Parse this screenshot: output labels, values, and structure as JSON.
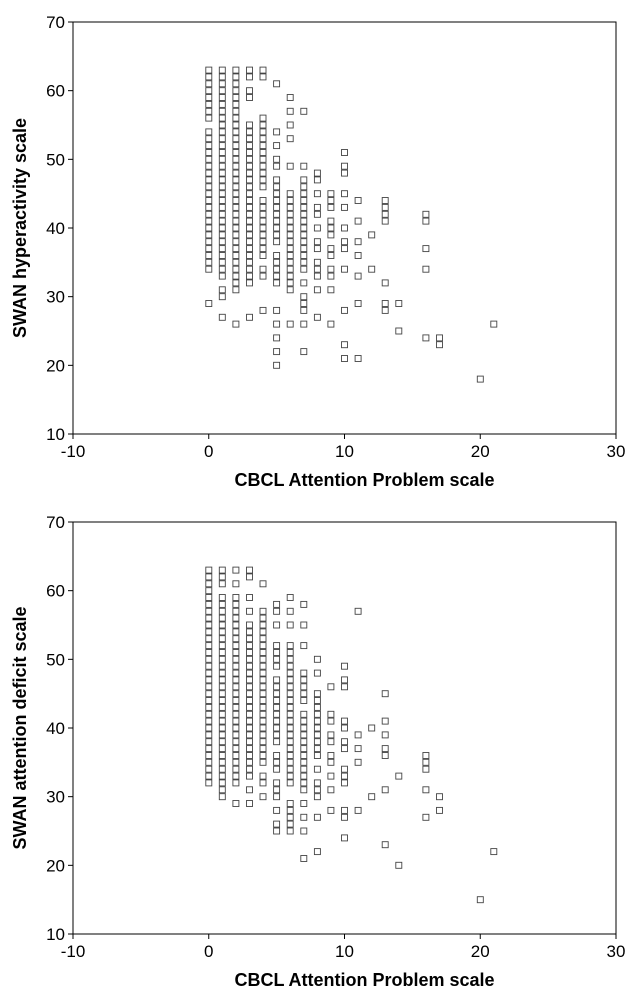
{
  "chart_data": [
    {
      "type": "scatter",
      "xlabel": "CBCL Attention Problem scale",
      "ylabel": "SWAN hyperactivity scale",
      "xlim": [
        -10,
        30
      ],
      "ylim": [
        10,
        70
      ],
      "xticks": [
        -10,
        0,
        10,
        20,
        30
      ],
      "yticks": [
        10,
        20,
        30,
        40,
        50,
        60,
        70
      ],
      "grid": false,
      "marker": "open-square",
      "columns": [
        {
          "x": 0,
          "y": [
            29,
            34,
            35,
            36,
            37,
            38,
            39,
            40,
            41,
            42,
            43,
            44,
            45,
            46,
            47,
            48,
            49,
            50,
            51,
            52,
            53,
            54,
            56,
            57,
            58,
            59,
            60,
            61,
            62,
            63
          ]
        },
        {
          "x": 1,
          "y": [
            27,
            30,
            31,
            33,
            34,
            35,
            36,
            37,
            38,
            39,
            40,
            41,
            42,
            43,
            44,
            45,
            46,
            47,
            48,
            49,
            50,
            51,
            52,
            53,
            54,
            55,
            56,
            57,
            58,
            59,
            60,
            61,
            62,
            63
          ]
        },
        {
          "x": 2,
          "y": [
            26,
            31,
            32,
            33,
            34,
            35,
            36,
            37,
            38,
            39,
            40,
            41,
            42,
            43,
            44,
            45,
            46,
            47,
            48,
            49,
            50,
            51,
            52,
            53,
            54,
            55,
            56,
            57,
            58,
            59,
            60,
            61,
            62,
            63
          ]
        },
        {
          "x": 3,
          "y": [
            27,
            32,
            33,
            34,
            35,
            36,
            37,
            38,
            39,
            40,
            41,
            42,
            43,
            44,
            45,
            46,
            47,
            48,
            49,
            50,
            51,
            52,
            53,
            54,
            55,
            59,
            60,
            62,
            63
          ]
        },
        {
          "x": 4,
          "y": [
            28,
            33,
            34,
            36,
            37,
            38,
            39,
            40,
            41,
            42,
            43,
            44,
            46,
            47,
            48,
            49,
            50,
            51,
            52,
            53,
            54,
            55,
            56,
            62,
            63
          ]
        },
        {
          "x": 5,
          "y": [
            20,
            22,
            24,
            26,
            28,
            32,
            33,
            34,
            35,
            36,
            38,
            39,
            40,
            41,
            42,
            43,
            44,
            45,
            46,
            47,
            49,
            50,
            52,
            54,
            61
          ]
        },
        {
          "x": 6,
          "y": [
            26,
            31,
            32,
            33,
            34,
            35,
            36,
            37,
            38,
            39,
            40,
            41,
            42,
            43,
            44,
            45,
            49,
            53,
            55,
            57,
            59
          ]
        },
        {
          "x": 7,
          "y": [
            22,
            26,
            28,
            29,
            30,
            32,
            34,
            35,
            36,
            37,
            38,
            39,
            40,
            41,
            42,
            43,
            44,
            45,
            46,
            47,
            49,
            57
          ]
        },
        {
          "x": 8,
          "y": [
            27,
            31,
            33,
            34,
            35,
            37,
            38,
            40,
            42,
            43,
            45,
            47,
            48
          ]
        },
        {
          "x": 9,
          "y": [
            26,
            31,
            33,
            34,
            36,
            37,
            39,
            40,
            41,
            43,
            44,
            45
          ]
        },
        {
          "x": 10,
          "y": [
            21,
            23,
            28,
            34,
            37,
            38,
            40,
            43,
            45,
            48,
            49,
            51
          ]
        },
        {
          "x": 11,
          "y": [
            21,
            29,
            33,
            36,
            38,
            41,
            44
          ]
        },
        {
          "x": 12,
          "y": [
            34,
            39
          ]
        },
        {
          "x": 13,
          "y": [
            28,
            29,
            32,
            41,
            42,
            43,
            44
          ]
        },
        {
          "x": 14,
          "y": [
            25,
            29
          ]
        },
        {
          "x": 16,
          "y": [
            24,
            34,
            37,
            41,
            42
          ]
        },
        {
          "x": 17,
          "y": [
            23,
            24
          ]
        },
        {
          "x": 20,
          "y": [
            18
          ]
        },
        {
          "x": 21,
          "y": [
            26
          ]
        }
      ]
    },
    {
      "type": "scatter",
      "xlabel": "CBCL Attention Problem scale",
      "ylabel": "SWAN attention deficit scale",
      "xlim": [
        -10,
        30
      ],
      "ylim": [
        10,
        70
      ],
      "xticks": [
        -10,
        0,
        10,
        20,
        30
      ],
      "yticks": [
        10,
        20,
        30,
        40,
        50,
        60,
        70
      ],
      "grid": false,
      "marker": "open-square",
      "columns": [
        {
          "x": 0,
          "y": [
            32,
            33,
            34,
            35,
            36,
            37,
            38,
            39,
            40,
            41,
            42,
            43,
            44,
            45,
            46,
            47,
            48,
            49,
            50,
            51,
            52,
            53,
            54,
            55,
            56,
            57,
            58,
            59,
            60,
            61,
            62,
            63
          ]
        },
        {
          "x": 1,
          "y": [
            30,
            31,
            32,
            33,
            34,
            35,
            36,
            37,
            38,
            39,
            40,
            41,
            42,
            43,
            44,
            45,
            46,
            47,
            48,
            49,
            50,
            51,
            52,
            53,
            54,
            55,
            56,
            57,
            58,
            59,
            61,
            62,
            63
          ]
        },
        {
          "x": 2,
          "y": [
            29,
            32,
            33,
            34,
            35,
            36,
            37,
            38,
            39,
            40,
            41,
            42,
            43,
            44,
            45,
            46,
            47,
            48,
            49,
            50,
            51,
            52,
            53,
            54,
            55,
            56,
            57,
            58,
            59,
            61,
            63
          ]
        },
        {
          "x": 3,
          "y": [
            29,
            31,
            33,
            34,
            35,
            36,
            37,
            38,
            39,
            40,
            41,
            42,
            43,
            44,
            45,
            46,
            47,
            48,
            49,
            50,
            51,
            52,
            53,
            54,
            55,
            57,
            59,
            62,
            63
          ]
        },
        {
          "x": 4,
          "y": [
            30,
            32,
            33,
            35,
            36,
            37,
            38,
            39,
            40,
            41,
            42,
            43,
            44,
            45,
            46,
            47,
            48,
            49,
            50,
            51,
            52,
            53,
            54,
            55,
            56,
            57,
            61
          ]
        },
        {
          "x": 5,
          "y": [
            25,
            26,
            28,
            30,
            31,
            32,
            34,
            35,
            36,
            38,
            39,
            40,
            41,
            42,
            43,
            44,
            45,
            46,
            47,
            49,
            50,
            51,
            52,
            55,
            57,
            58
          ]
        },
        {
          "x": 6,
          "y": [
            25,
            26,
            27,
            28,
            29,
            32,
            33,
            34,
            35,
            36,
            37,
            38,
            39,
            40,
            41,
            42,
            43,
            44,
            45,
            46,
            47,
            48,
            49,
            50,
            51,
            52,
            55,
            57,
            59
          ]
        },
        {
          "x": 7,
          "y": [
            21,
            25,
            27,
            29,
            31,
            32,
            33,
            34,
            35,
            36,
            37,
            38,
            39,
            40,
            41,
            42,
            44,
            45,
            46,
            47,
            48,
            52,
            55,
            58
          ]
        },
        {
          "x": 8,
          "y": [
            22,
            27,
            30,
            31,
            32,
            34,
            36,
            37,
            38,
            39,
            40,
            41,
            42,
            43,
            44,
            45,
            48,
            50
          ]
        },
        {
          "x": 9,
          "y": [
            28,
            31,
            33,
            35,
            36,
            38,
            39,
            41,
            42,
            46
          ]
        },
        {
          "x": 10,
          "y": [
            24,
            27,
            28,
            32,
            33,
            34,
            37,
            38,
            40,
            41,
            46,
            47,
            49
          ]
        },
        {
          "x": 11,
          "y": [
            28,
            35,
            37,
            39,
            57
          ]
        },
        {
          "x": 12,
          "y": [
            30,
            40
          ]
        },
        {
          "x": 13,
          "y": [
            23,
            31,
            36,
            37,
            39,
            41,
            45
          ]
        },
        {
          "x": 14,
          "y": [
            20,
            33
          ]
        },
        {
          "x": 16,
          "y": [
            27,
            31,
            34,
            35,
            36
          ]
        },
        {
          "x": 17,
          "y": [
            28,
            30
          ]
        },
        {
          "x": 20,
          "y": [
            15
          ]
        },
        {
          "x": 21,
          "y": [
            22
          ]
        }
      ]
    }
  ]
}
